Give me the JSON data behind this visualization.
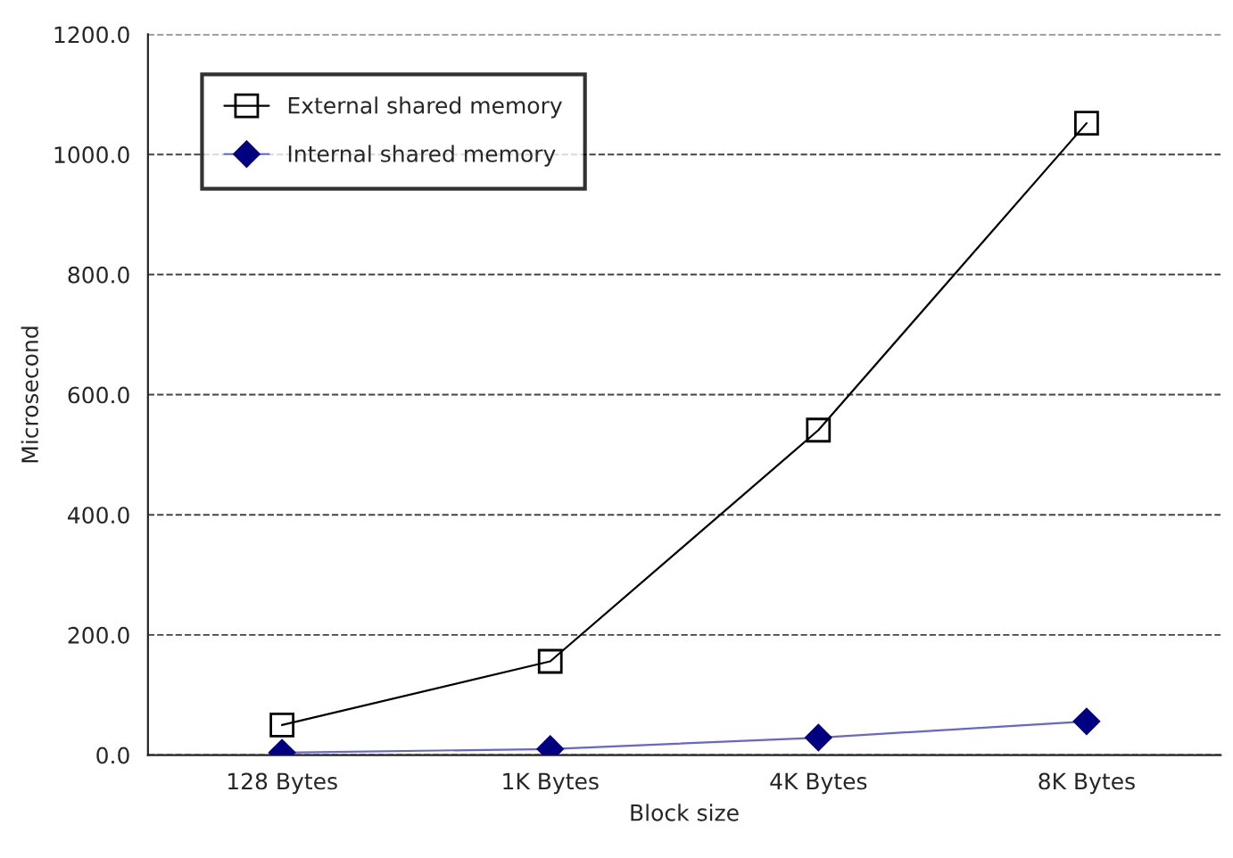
{
  "chart_data": {
    "type": "line",
    "xlabel": "Block size",
    "ylabel": "Microsecond",
    "categories": [
      "128 Bytes",
      "1K Bytes",
      "4K Bytes",
      "8K Bytes"
    ],
    "series": [
      {
        "name": "External shared memory",
        "color": "#000000",
        "values": [
          50,
          156,
          541,
          1052
        ],
        "marker": "square"
      },
      {
        "name": "Internal shared memory",
        "color": "#000080",
        "values": [
          4,
          10,
          29,
          56
        ],
        "marker": "diamond"
      }
    ],
    "ylim": [
      0,
      1200
    ],
    "yticks": [
      {
        "value": 0,
        "label": "0.0"
      },
      {
        "value": 200,
        "label": "200.0"
      },
      {
        "value": 400,
        "label": "400.0"
      },
      {
        "value": 600,
        "label": "600.0"
      },
      {
        "value": 800,
        "label": "800.0"
      },
      {
        "value": 1000,
        "label": "1000.0"
      },
      {
        "value": 1200,
        "label": "1200.0"
      }
    ],
    "grid": "y",
    "legend": "top left",
    "line_style": "solid"
  }
}
